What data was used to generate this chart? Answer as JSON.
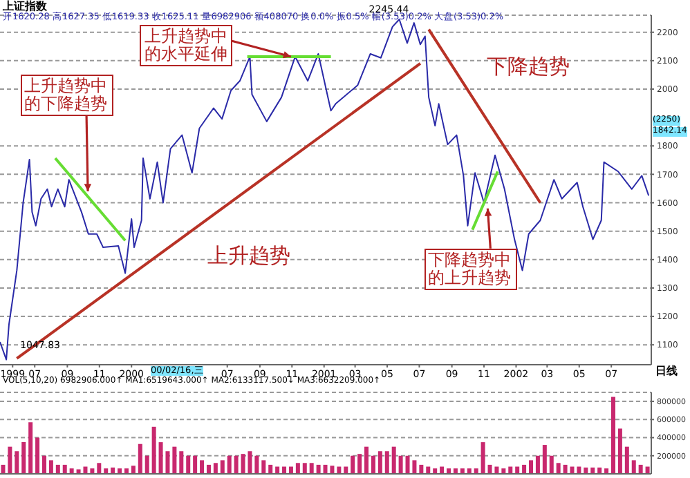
{
  "chart_data": [
    {
      "type": "line",
      "xlim": [
        "1999-04-26",
        "2002-09-15"
      ],
      "xticks": [
        {
          "value": "1999-05-20",
          "label": "1999"
        },
        {
          "value": "1999-07-01",
          "label": "07"
        },
        {
          "value": "1999-09-01",
          "label": "09"
        },
        {
          "value": "1999-11-01",
          "label": "11"
        },
        {
          "value": "2000-01-01",
          "label": "2000"
        },
        {
          "value": "2000-07-01",
          "label": "07"
        },
        {
          "value": "2000-09-01",
          "label": "09"
        },
        {
          "value": "2000-11-01",
          "label": "11"
        },
        {
          "value": "2001-01-01",
          "label": "2001"
        },
        {
          "value": "2001-03-01",
          "label": "03"
        },
        {
          "value": "2001-05-01",
          "label": "05"
        },
        {
          "value": "2001-07-01",
          "label": "07"
        },
        {
          "value": "2001-09-01",
          "label": "09"
        },
        {
          "value": "2001-11-01",
          "label": "11"
        },
        {
          "value": "2002-01-01",
          "label": "2002"
        },
        {
          "value": "2002-03-01",
          "label": "03"
        },
        {
          "value": "2002-05-01",
          "label": "05"
        },
        {
          "value": "2002-07-01",
          "label": "07"
        }
      ],
      "ylim": [
        1030,
        2260
      ],
      "yticks": [
        1100,
        1200,
        1300,
        1400,
        1500,
        1600,
        1700,
        1800,
        2000,
        2100,
        2200
      ],
      "grid": "y",
      "series": [
        {
          "color": "#2a2aa8",
          "x": [
            "1999-04-26",
            "1999-05-08",
            "1999-05-13",
            "1999-05-28",
            "1999-06-09",
            "1999-06-21",
            "1999-06-26",
            "1999-07-03",
            "1999-07-13",
            "1999-07-25",
            "1999-08-02",
            "1999-08-14",
            "1999-08-27",
            "1999-09-04",
            "1999-09-28",
            "1999-10-11",
            "1999-10-27",
            "1999-11-08",
            "1999-12-07",
            "1999-12-20",
            "2000-01-01",
            "2000-01-06",
            "2000-01-20",
            "2000-01-23",
            "2000-02-05",
            "2000-02-19",
            "2000-03-01",
            "2000-03-15",
            "2000-04-06",
            "2000-04-25",
            "2000-05-09",
            "2000-06-05",
            "2000-06-21",
            "2000-07-08",
            "2000-07-25",
            "2000-08-13",
            "2000-08-17",
            "2000-09-14",
            "2000-10-12",
            "2000-11-07",
            "2000-12-01",
            "2000-12-21",
            "2001-01-14",
            "2001-01-23",
            "2001-03-06",
            "2001-03-30",
            "2001-04-19",
            "2001-05-11",
            "2001-05-24",
            "2001-06-08",
            "2001-06-21",
            "2001-07-03",
            "2001-07-12",
            "2001-07-19",
            "2001-07-31",
            "2001-08-07",
            "2001-08-24",
            "2001-09-10",
            "2001-09-23",
            "2001-10-01",
            "2001-10-15",
            "2001-11-01",
            "2001-11-22",
            "2001-12-10",
            "2001-12-29",
            "2002-01-13",
            "2002-01-25",
            "2002-02-16",
            "2002-03-14",
            "2002-03-29",
            "2002-04-27",
            "2002-05-08",
            "2002-05-27",
            "2002-06-12",
            "2002-06-17",
            "2002-07-14",
            "2002-08-09",
            "2002-08-28",
            "2002-09-10"
          ],
          "values": [
            1110,
            1047.83,
            1171,
            1362,
            1600,
            1752,
            1567,
            1519,
            1614,
            1648,
            1586,
            1648,
            1586,
            1681,
            1567,
            1490,
            1490,
            1443,
            1448,
            1352,
            1543,
            1443,
            1538,
            1757,
            1614,
            1743,
            1600,
            1790,
            1838,
            1705,
            1862,
            1933,
            1895,
            1995,
            2029,
            2114,
            1981,
            1886,
            1971,
            2114,
            2029,
            2124,
            1924,
            1948,
            2014,
            2124,
            2110,
            2219,
            2245.44,
            2162,
            2233,
            2157,
            2186,
            1971,
            1871,
            1948,
            1805,
            1838,
            1695,
            1519,
            1705,
            1600,
            1767,
            1648,
            1471,
            1362,
            1490,
            1538,
            1681,
            1614,
            1671,
            1586,
            1471,
            1538,
            1743,
            1710,
            1648,
            1695,
            1625.11
          ]
        },
        {
          "color": "#66dd33",
          "x": [
            "1999-08-09",
            "1999-12-20"
          ],
          "values": [
            1757,
            1467
          ]
        },
        {
          "color": "#66dd33",
          "x": [
            "2000-08-08",
            "2001-01-14"
          ],
          "values": [
            2114,
            2114
          ]
        },
        {
          "color": "#66dd33",
          "x": [
            "2001-10-10",
            "2001-11-27"
          ],
          "values": [
            1505,
            1710
          ]
        },
        {
          "color": "#b83226",
          "x": [
            "1999-05-28",
            "2001-07-03"
          ],
          "values": [
            1052,
            2090
          ]
        },
        {
          "color": "#b83226",
          "x": [
            "2001-07-19",
            "2002-02-16"
          ],
          "values": [
            2210,
            1600
          ]
        }
      ],
      "annotations": [
        "上证指数",
        "开1620.28 高1627.35 低1619.33 收1625.11 量6982906 额408070 换0.0% 振0.5% 幅(3.53)0.2% 大盘(3.53)0.2%",
        {
          "text": "2245.44",
          "x": "2001-05-24",
          "y": 2245.44
        },
        {
          "text": "1047.83",
          "x": "1999-05-08",
          "y": 1047.83
        },
        {
          "text": "上升趋势中的下降趋势",
          "x": "1999-10-10",
          "y": 1640
        },
        {
          "text": "上升趋势中的水平延伸",
          "x": "2000-10-30",
          "y": 2114
        },
        "上升趋势",
        "下降趋势",
        {
          "text": "下降趋势中的上升趋势",
          "x": "2001-11-08",
          "y": 1580
        },
        "00/02/16,三",
        "日线",
        "(2250)",
        "1842.14"
      ]
    },
    {
      "type": "bar",
      "categories": [
        null,
        null,
        null,
        null,
        null,
        null,
        null,
        null,
        null,
        null,
        null,
        null,
        null,
        null,
        null,
        null,
        null,
        null,
        null,
        null,
        null,
        null,
        null,
        null,
        null,
        null,
        null,
        null,
        null,
        null,
        null,
        null,
        null,
        null,
        null,
        null,
        null,
        null,
        null,
        null,
        null,
        null,
        null,
        null,
        null,
        null,
        null,
        null,
        null,
        null,
        null,
        null,
        null,
        null,
        null,
        null,
        null,
        null,
        null,
        null,
        null,
        null,
        null,
        null,
        null,
        null,
        null,
        null,
        null,
        null,
        null,
        null,
        null,
        null,
        null,
        null,
        null,
        null,
        null,
        null,
        null,
        null,
        null,
        null,
        null,
        null,
        null,
        null,
        null,
        null,
        null,
        null,
        null,
        null,
        null
      ],
      "values": [
        100000,
        300000,
        250000,
        350000,
        570000,
        400000,
        200000,
        150000,
        100000,
        100000,
        60000,
        50000,
        80000,
        60000,
        120000,
        60000,
        70000,
        60000,
        60000,
        90000,
        330000,
        200000,
        520000,
        350000,
        250000,
        300000,
        250000,
        200000,
        200000,
        150000,
        100000,
        120000,
        150000,
        200000,
        200000,
        220000,
        250000,
        200000,
        150000,
        100000,
        80000,
        80000,
        80000,
        120000,
        120000,
        120000,
        100000,
        100000,
        90000,
        80000,
        80000,
        200000,
        220000,
        300000,
        200000,
        250000,
        250000,
        300000,
        200000,
        200000,
        150000,
        100000,
        80000,
        60000,
        80000,
        60000,
        60000,
        60000,
        60000,
        60000,
        350000,
        100000,
        80000,
        60000,
        80000,
        80000,
        100000,
        150000,
        200000,
        320000,
        200000,
        120000,
        100000,
        80000,
        80000,
        70000,
        70000,
        70000,
        60000,
        850000,
        500000,
        300000,
        150000,
        100000,
        80000
      ],
      "color": "#c8286e",
      "ylim": [
        0,
        900000
      ],
      "yticks": [
        200000,
        400000,
        600000,
        800000
      ],
      "grid": "y",
      "tick_labels": "y",
      "annotations": [
        "VOL(5,10,20) 6982906.000↑ MA1:6519643.000↑ MA2:6133117.500↓ MA3:6632209.000↑"
      ]
    }
  ]
}
